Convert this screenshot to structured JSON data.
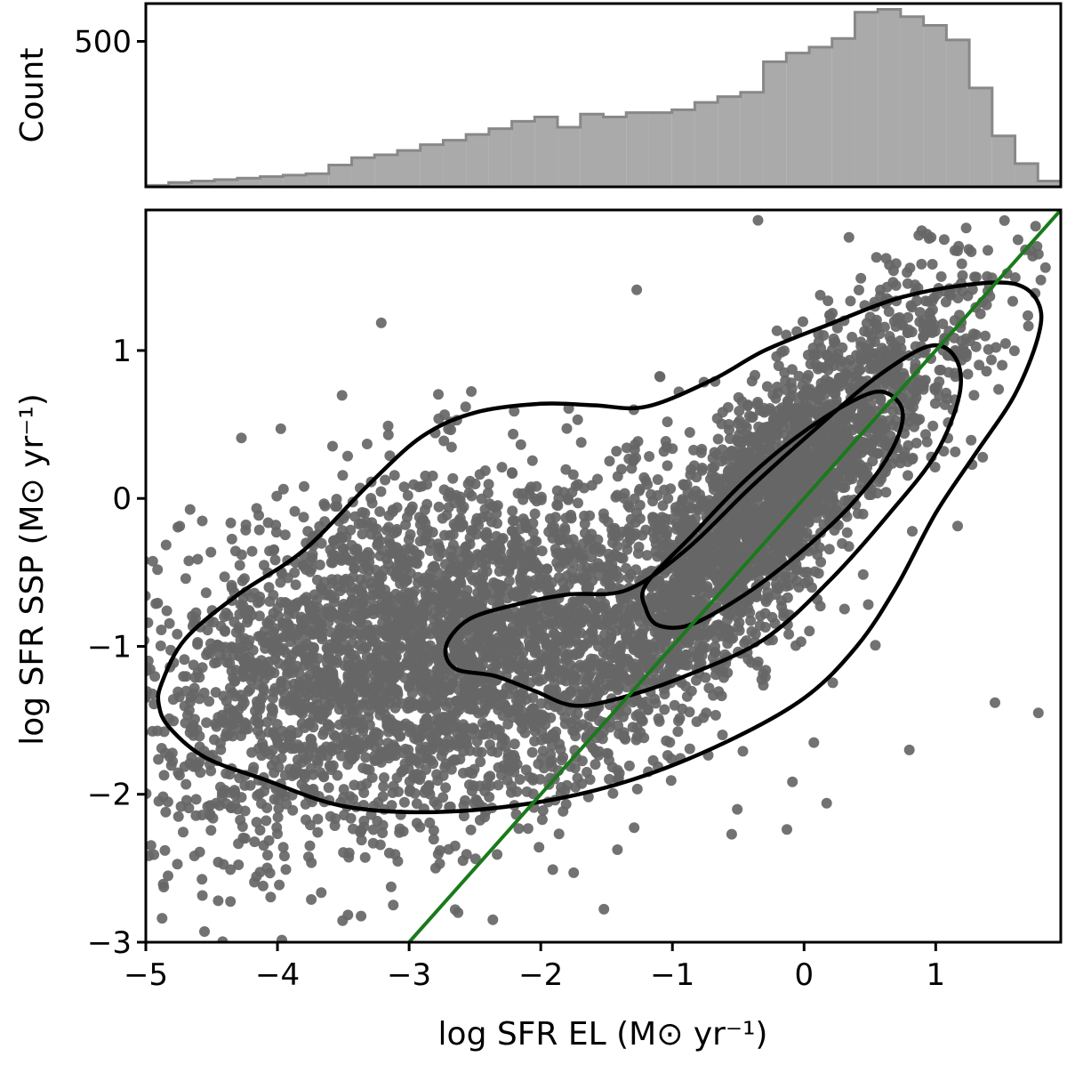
{
  "chart_data": [
    {
      "type": "histogram",
      "panel": "top",
      "ylabel": "Count",
      "yticks": [
        500
      ],
      "ylim": [
        0,
        630
      ],
      "xlim": [
        -5,
        2
      ],
      "bin_edges_start": -5.0,
      "bin_width": 0.175,
      "counts": [
        5,
        15,
        20,
        25,
        30,
        35,
        40,
        45,
        75,
        100,
        110,
        125,
        145,
        160,
        180,
        200,
        225,
        240,
        205,
        250,
        240,
        255,
        255,
        265,
        290,
        310,
        325,
        430,
        460,
        480,
        510,
        600,
        610,
        585,
        555,
        505,
        340,
        175,
        80,
        20,
        10,
        0,
        0
      ],
      "colors": {
        "fill": "#aaaaaa",
        "edge": "#888888"
      }
    },
    {
      "type": "scatter",
      "panel": "main",
      "xlabel": "log SFR EL (M⊙ yr⁻¹)",
      "ylabel": "log SFR SSP (M⊙ yr⁻¹)",
      "xlim": [
        -5,
        1.95
      ],
      "ylim": [
        -3,
        1.95
      ],
      "xticks": [
        -5,
        -4,
        -3,
        -2,
        -1,
        0,
        1
      ],
      "yticks": [
        -3,
        -2,
        -1,
        0,
        1
      ],
      "xtick_labels": [
        "−5",
        "−4",
        "−3",
        "−2",
        "−1",
        "0",
        "1"
      ],
      "ytick_labels": [
        "−3",
        "−2",
        "−1",
        "0",
        "1"
      ],
      "point_color": "#666666",
      "approx_points": 6000,
      "one_to_one_line": {
        "x": [
          -3.0,
          1.95
        ],
        "y": [
          -3.0,
          1.95
        ],
        "color": "#1a7a1a"
      },
      "contours": [
        {
          "level": "outer",
          "points": [
            [
              -4.88,
              -1.25
            ],
            [
              -4.7,
              -0.95
            ],
            [
              -4.3,
              -0.65
            ],
            [
              -3.8,
              -0.35
            ],
            [
              -3.3,
              0.1
            ],
            [
              -2.9,
              0.42
            ],
            [
              -2.5,
              0.58
            ],
            [
              -2.0,
              0.64
            ],
            [
              -1.6,
              0.63
            ],
            [
              -1.2,
              0.62
            ],
            [
              -0.7,
              0.8
            ],
            [
              -0.3,
              1.0
            ],
            [
              0.2,
              1.18
            ],
            [
              0.7,
              1.35
            ],
            [
              1.2,
              1.44
            ],
            [
              1.6,
              1.45
            ],
            [
              1.78,
              1.32
            ],
            [
              1.78,
              1.1
            ],
            [
              1.6,
              0.7
            ],
            [
              1.3,
              0.3
            ],
            [
              1.0,
              -0.1
            ],
            [
              0.7,
              -0.6
            ],
            [
              0.4,
              -1.0
            ],
            [
              0.0,
              -1.35
            ],
            [
              -0.6,
              -1.65
            ],
            [
              -1.3,
              -1.9
            ],
            [
              -2.0,
              -2.05
            ],
            [
              -2.8,
              -2.12
            ],
            [
              -3.5,
              -2.08
            ],
            [
              -4.1,
              -1.9
            ],
            [
              -4.55,
              -1.75
            ],
            [
              -4.82,
              -1.55
            ],
            [
              -4.9,
              -1.4
            ],
            [
              -4.88,
              -1.25
            ]
          ]
        },
        {
          "level": "middle",
          "points": [
            [
              -2.72,
              -1.0
            ],
            [
              -2.55,
              -0.82
            ],
            [
              -2.2,
              -0.72
            ],
            [
              -1.8,
              -0.65
            ],
            [
              -1.35,
              -0.62
            ],
            [
              -0.9,
              -0.35
            ],
            [
              -0.4,
              0.08
            ],
            [
              0.1,
              0.48
            ],
            [
              0.55,
              0.82
            ],
            [
              0.95,
              1.03
            ],
            [
              1.15,
              0.95
            ],
            [
              1.18,
              0.7
            ],
            [
              1.0,
              0.3
            ],
            [
              0.65,
              -0.1
            ],
            [
              0.2,
              -0.55
            ],
            [
              -0.3,
              -0.95
            ],
            [
              -0.9,
              -1.2
            ],
            [
              -1.4,
              -1.35
            ],
            [
              -1.75,
              -1.4
            ],
            [
              -2.05,
              -1.3
            ],
            [
              -2.35,
              -1.2
            ],
            [
              -2.65,
              -1.15
            ],
            [
              -2.72,
              -1.0
            ]
          ]
        },
        {
          "level": "inner",
          "points": [
            [
              -1.2,
              -0.75
            ],
            [
              -1.2,
              -0.58
            ],
            [
              -0.85,
              -0.25
            ],
            [
              -0.45,
              0.12
            ],
            [
              -0.05,
              0.42
            ],
            [
              0.35,
              0.65
            ],
            [
              0.6,
              0.72
            ],
            [
              0.75,
              0.58
            ],
            [
              0.65,
              0.3
            ],
            [
              0.35,
              -0.05
            ],
            [
              -0.05,
              -0.38
            ],
            [
              -0.45,
              -0.65
            ],
            [
              -0.85,
              -0.85
            ],
            [
              -1.1,
              -0.86
            ],
            [
              -1.2,
              -0.75
            ]
          ]
        }
      ]
    }
  ]
}
